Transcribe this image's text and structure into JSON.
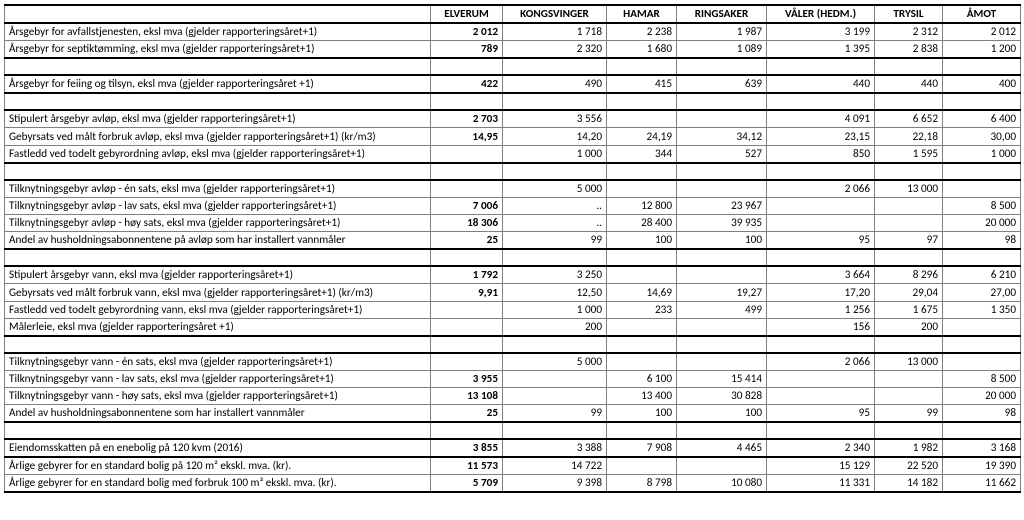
{
  "headers": [
    "",
    "ELVERUM",
    "KONGSVINGER",
    "HAMAR",
    "RINGSAKER",
    "VÅLER (HEDM.)",
    "TRYSIL",
    "ÅMOT"
  ],
  "rows": [
    {
      "label": "Årsgebyr for avfallstjenesten, eksl mva (gjelder rapporteringsåret+1)",
      "vals": [
        "2 012",
        "1 718",
        "2 238",
        "1 987",
        "3 199",
        "2 312",
        "2 012"
      ],
      "spacer": false,
      "bold1": true,
      "thickTop": true,
      "thickBottom": false
    },
    {
      "label": "Årsgebyr for septiktømming, eksl mva (gjelder rapporteringsåret+1)",
      "vals": [
        "789",
        "2 320",
        "1 680",
        "1 089",
        "1 395",
        "2 838",
        "1 200"
      ],
      "spacer": false,
      "bold1": true,
      "thickTop": false,
      "thickBottom": true
    },
    {
      "label": "",
      "vals": [
        "",
        "",
        "",
        "",
        "",
        "",
        ""
      ],
      "spacer": true,
      "bold1": false,
      "thickTop": false,
      "thickBottom": false
    },
    {
      "label": "Årsgebyr for feiing og tilsyn, eksl mva (gjelder rapporteringsåret +1)",
      "vals": [
        "422",
        "490",
        "415",
        "639",
        "440",
        "440",
        "400"
      ],
      "spacer": false,
      "bold1": true,
      "thickTop": true,
      "thickBottom": true
    },
    {
      "label": "",
      "vals": [
        "",
        "",
        "",
        "",
        "",
        "",
        ""
      ],
      "spacer": true,
      "bold1": false,
      "thickTop": false,
      "thickBottom": false
    },
    {
      "label": "Stipulert årsgebyr avløp, eksl mva (gjelder rapporteringsåret+1)",
      "vals": [
        "2 703",
        "3 556",
        "",
        "",
        "4 091",
        "6 652",
        "6 400"
      ],
      "spacer": false,
      "bold1": true,
      "thickTop": true,
      "thickBottom": false
    },
    {
      "label": "Gebyrsats ved målt forbruk avløp, eksl mva (gjelder rapporteringsåret+1) (kr/m3)",
      "vals": [
        "14,95",
        "14,20",
        "24,19",
        "34,12",
        "23,15",
        "22,18",
        "30,00"
      ],
      "spacer": false,
      "bold1": true,
      "thickTop": false,
      "thickBottom": false
    },
    {
      "label": "Fastledd ved todelt gebyrordning avløp, eksl mva (gjelder rapporteringsåret+1)",
      "vals": [
        "",
        "1 000",
        "344",
        "527",
        "850",
        "1 595",
        "1 000"
      ],
      "spacer": false,
      "bold1": false,
      "thickTop": false,
      "thickBottom": true
    },
    {
      "label": "",
      "vals": [
        "",
        "",
        "",
        "",
        "",
        "",
        ""
      ],
      "spacer": true,
      "bold1": false,
      "thickTop": false,
      "thickBottom": false
    },
    {
      "label": "Tilknytningsgebyr avløp - én sats, eksl mva (gjelder rapporteringsåret+1)",
      "vals": [
        "",
        "5 000",
        "",
        "",
        "2 066",
        "13 000",
        ""
      ],
      "spacer": false,
      "bold1": false,
      "thickTop": true,
      "thickBottom": false
    },
    {
      "label": "Tilknytningsgebyr avløp - lav sats, eksl mva (gjelder rapporteringsåret+1)",
      "vals": [
        "7 006",
        "..",
        "12 800",
        "23 967",
        "",
        "",
        "8 500"
      ],
      "spacer": false,
      "bold1": true,
      "thickTop": false,
      "thickBottom": false
    },
    {
      "label": "Tilknytningsgebyr avløp - høy sats, eksl mva (gjelder rapporteringsåret+1)",
      "vals": [
        "18 306",
        "..",
        "28 400",
        "39 935",
        "",
        "",
        "20 000"
      ],
      "spacer": false,
      "bold1": true,
      "thickTop": false,
      "thickBottom": false
    },
    {
      "label": "Andel av husholdningsabonnentene på avløp som har installert vannmåler",
      "vals": [
        "25",
        "99",
        "100",
        "100",
        "95",
        "97",
        "98"
      ],
      "spacer": false,
      "bold1": true,
      "thickTop": false,
      "thickBottom": true
    },
    {
      "label": "",
      "vals": [
        "",
        "",
        "",
        "",
        "",
        "",
        ""
      ],
      "spacer": true,
      "bold1": false,
      "thickTop": false,
      "thickBottom": false
    },
    {
      "label": "Stipulert årsgebyr vann, eksl mva (gjelder rapporteringsåret+1)",
      "vals": [
        "1 792",
        "3 250",
        "",
        "",
        "3 664",
        "8 296",
        "6 210"
      ],
      "spacer": false,
      "bold1": true,
      "thickTop": true,
      "thickBottom": false
    },
    {
      "label": "Gebyrsats ved målt forbruk vann, eksl mva (gjelder rapporteringsåret+1) (kr/m3)",
      "vals": [
        "9,91",
        "12,50",
        "14,69",
        "19,27",
        "17,20",
        "29,04",
        "27,00"
      ],
      "spacer": false,
      "bold1": true,
      "thickTop": false,
      "thickBottom": false
    },
    {
      "label": "Fastledd ved todelt gebyrordning vann, eksl mva (gjelder rapporteringsåret+1)",
      "vals": [
        "",
        "1 000",
        "233",
        "499",
        "1 256",
        "1 675",
        "1 350"
      ],
      "spacer": false,
      "bold1": false,
      "thickTop": false,
      "thickBottom": false
    },
    {
      "label": "Målerleie, eksl mva (gjelder rapporteringsåret +1)",
      "vals": [
        "",
        "200",
        "",
        "",
        "156",
        "200",
        ""
      ],
      "spacer": false,
      "bold1": false,
      "thickTop": false,
      "thickBottom": true
    },
    {
      "label": "",
      "vals": [
        "",
        "",
        "",
        "",
        "",
        "",
        ""
      ],
      "spacer": true,
      "bold1": false,
      "thickTop": false,
      "thickBottom": false
    },
    {
      "label": "Tilknytningsgebyr vann - én sats, eksl mva (gjelder rapporteringsåret+1)",
      "vals": [
        "",
        "5 000",
        "",
        "",
        "2 066",
        "13 000",
        ""
      ],
      "spacer": false,
      "bold1": false,
      "thickTop": true,
      "thickBottom": false
    },
    {
      "label": "Tilknytningsgebyr vann - lav sats, eksl mva (gjelder rapporteringsåret+1)",
      "vals": [
        "3 955",
        "",
        "6 100",
        "15 414",
        "",
        "",
        "8 500"
      ],
      "spacer": false,
      "bold1": true,
      "thickTop": false,
      "thickBottom": false
    },
    {
      "label": "Tilknytningsgebyr vann - høy sats, eksl mva (gjelder rapporteringsåret+1)",
      "vals": [
        "13 108",
        "",
        "13 400",
        "30 828",
        "",
        "",
        "20 000"
      ],
      "spacer": false,
      "bold1": true,
      "thickTop": false,
      "thickBottom": false
    },
    {
      "label": "Andel av husholdningsabonnentene som har installert vannmåler",
      "vals": [
        "25",
        "99",
        "100",
        "100",
        "95",
        "99",
        "98"
      ],
      "spacer": false,
      "bold1": true,
      "thickTop": false,
      "thickBottom": true
    },
    {
      "label": "",
      "vals": [
        "",
        "",
        "",
        "",
        "",
        "",
        ""
      ],
      "spacer": true,
      "bold1": false,
      "thickTop": false,
      "thickBottom": false
    },
    {
      "label": "Eiendomsskatten på en enebolig på 120 kvm (2016)",
      "vals": [
        "3 855",
        "3 388",
        "7 908",
        "4 465",
        "2 340",
        "1 982",
        "3 168"
      ],
      "spacer": false,
      "bold1": true,
      "thickTop": true,
      "thickBottom": true
    },
    {
      "label": "Årlige gebyrer for en standard bolig på 120 m² ekskl. mva. (kr).",
      "vals": [
        "11 573",
        "14 722",
        "",
        "",
        "15 129",
        "22 520",
        "19 390"
      ],
      "spacer": false,
      "bold1": true,
      "thickTop": false,
      "thickBottom": false
    },
    {
      "label": "Årlige gebyrer for en standard bolig med forbruk 100 m³ ekskl. mva. (kr).",
      "vals": [
        "5 709",
        "9 398",
        "8 798",
        "10 080",
        "11 331",
        "14 182",
        "11 662"
      ],
      "spacer": false,
      "bold1": true,
      "thickTop": false,
      "thickBottom": true
    }
  ]
}
